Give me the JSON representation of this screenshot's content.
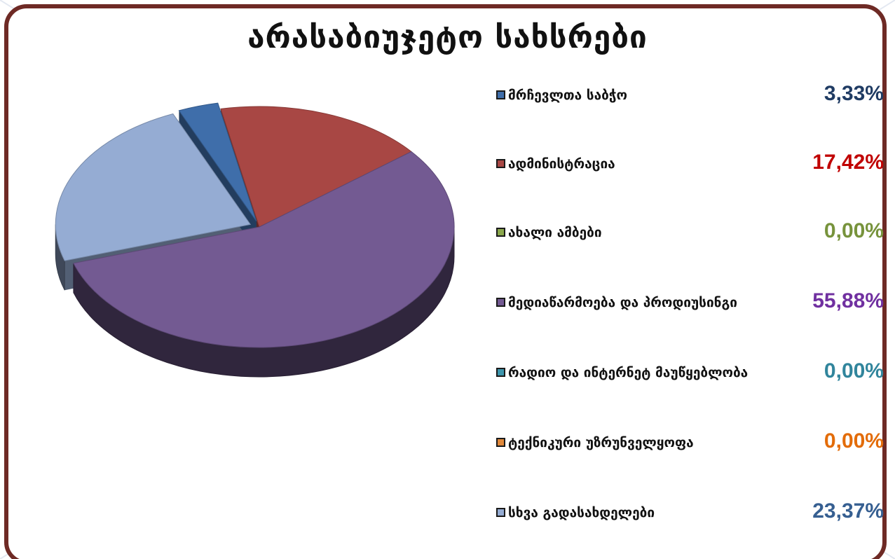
{
  "title": "არასაბიუჯეტო სახსრები",
  "colors": {
    "frame": "#6e2a25",
    "background": "#ffffff"
  },
  "chart_data": {
    "type": "pie",
    "title": "არასაბიუჯეტო სახსრები",
    "legend_position": "right",
    "style": "3d-exploded",
    "slices": [
      {
        "label": "მრჩევლთა საბჭო",
        "value": 3.33,
        "value_label": "3,33%",
        "color": "#3f6eaa",
        "label_color": "#1f3b63"
      },
      {
        "label": "ადმინისტრაცია",
        "value": 17.42,
        "value_label": "17,42%",
        "color": "#a84744",
        "label_color": "#c00000"
      },
      {
        "label": "ახალი ამბები",
        "value": 0.0,
        "value_label": "0,00%",
        "color": "#8aa74c",
        "label_color": "#77933c"
      },
      {
        "label": "მედიაწარმოება და პროდიუსინგი",
        "value": 55.88,
        "value_label": "55,88%",
        "color": "#735a92",
        "label_color": "#7030a0"
      },
      {
        "label": "რადიო და ინტერნეტ მაუწყებლობა",
        "value": 0.0,
        "value_label": "0,00%",
        "color": "#3d96ad",
        "label_color": "#31859c"
      },
      {
        "label": "ტექნიკური უზრუნველყოფა",
        "value": 0.0,
        "value_label": "0,00%",
        "color": "#e0883a",
        "label_color": "#e36c09"
      },
      {
        "label": "სხვა გადასახდელები",
        "value": 23.37,
        "value_label": "23,37%",
        "color": "#95acd3",
        "label_color": "#365f91"
      }
    ]
  }
}
